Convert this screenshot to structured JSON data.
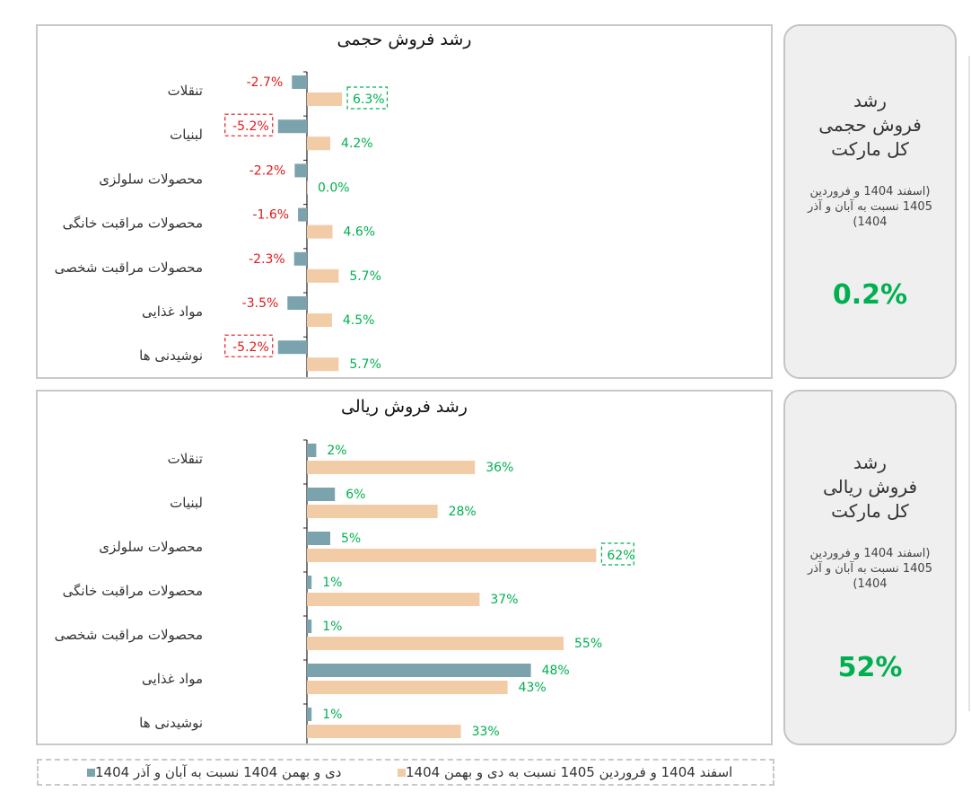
{
  "chart_data": [
    {
      "type": "bar",
      "orientation": "horizontal",
      "title": "رشد فروش حجمی",
      "categories": [
        "تنقلات",
        "لبنیات",
        "محصولات سلولزی",
        "محصولات مراقبت خانگی",
        "محصولات مراقبت شخصی",
        "مواد غذایی",
        "نوشیدنی ها"
      ],
      "series": [
        {
          "name": "دی و بهمن 1404 نسبت به آبان و آذر 1404",
          "color": "#7ba3ad",
          "values": [
            -2.7,
            -5.2,
            -2.2,
            -1.6,
            -2.3,
            -3.5,
            -5.2
          ],
          "labels": [
            "-2.7%",
            "-5.2%",
            "-2.2%",
            "-1.6%",
            "-2.3%",
            "-3.5%",
            "-5.2%"
          ],
          "highlighted": [
            false,
            true,
            false,
            false,
            false,
            false,
            true
          ]
        },
        {
          "name": "اسفند 1404 و فروردین 1405 نسبت به دی و بهمن 1404",
          "color": "#f2cba7",
          "values": [
            6.3,
            4.2,
            0.0,
            4.6,
            5.7,
            4.5,
            5.7
          ],
          "labels": [
            "6.3%",
            "4.2%",
            "0.0%",
            "4.6%",
            "5.7%",
            "4.5%",
            "5.7%"
          ],
          "highlighted": [
            true,
            false,
            false,
            false,
            false,
            false,
            false
          ]
        }
      ],
      "positive_color": "#00b050",
      "negative_color": "#e0191b"
    },
    {
      "type": "bar",
      "orientation": "horizontal",
      "title": "رشد فروش ریالی",
      "categories": [
        "تنقلات",
        "لبنیات",
        "محصولات سلولزی",
        "محصولات مراقبت خانگی",
        "محصولات مراقبت شخصی",
        "مواد غذایی",
        "نوشیدنی ها"
      ],
      "series": [
        {
          "name": "دی و بهمن 1404 نسبت به آبان و آذر 1404",
          "color": "#7ba3ad",
          "values": [
            2,
            6,
            5,
            1,
            1,
            48,
            1
          ],
          "labels": [
            "2%",
            "6%",
            "5%",
            "1%",
            "1%",
            "48%",
            "1%"
          ],
          "highlighted": [
            false,
            false,
            false,
            false,
            false,
            false,
            false
          ]
        },
        {
          "name": "اسفند 1404 و فروردین 1405 نسبت به دی و بهمن 1404",
          "color": "#f2cba7",
          "values": [
            36,
            28,
            62,
            37,
            55,
            43,
            33
          ],
          "labels": [
            "36%",
            "28%",
            "62%",
            "37%",
            "55%",
            "43%",
            "33%"
          ],
          "highlighted": [
            false,
            false,
            true,
            false,
            false,
            false,
            false
          ]
        }
      ],
      "positive_color": "#00b050",
      "negative_color": "#e0191b"
    }
  ],
  "kpis": [
    {
      "title": "رشد\nفروش حجمی\nکل مارکت",
      "subtitle": "(اسفند 1404 و فروردین 1405 نسبت به آبان و آذر 1404)",
      "value": "0.2%"
    },
    {
      "title": "رشد\nفروش ریالی\nکل مارکت",
      "subtitle": "(اسفند 1404 و فروردین 1405 نسبت به آبان و آذر 1404)",
      "value": "52%"
    }
  ],
  "legend": {
    "item_current": "اسفند 1404 و فروردین 1405 نسبت به دی و بهمن 1404",
    "item_previous": "دی و بهمن 1404 نسبت به آبان و آذر 1404",
    "color_current": "#f2cba7",
    "color_previous": "#7ba3ad"
  }
}
